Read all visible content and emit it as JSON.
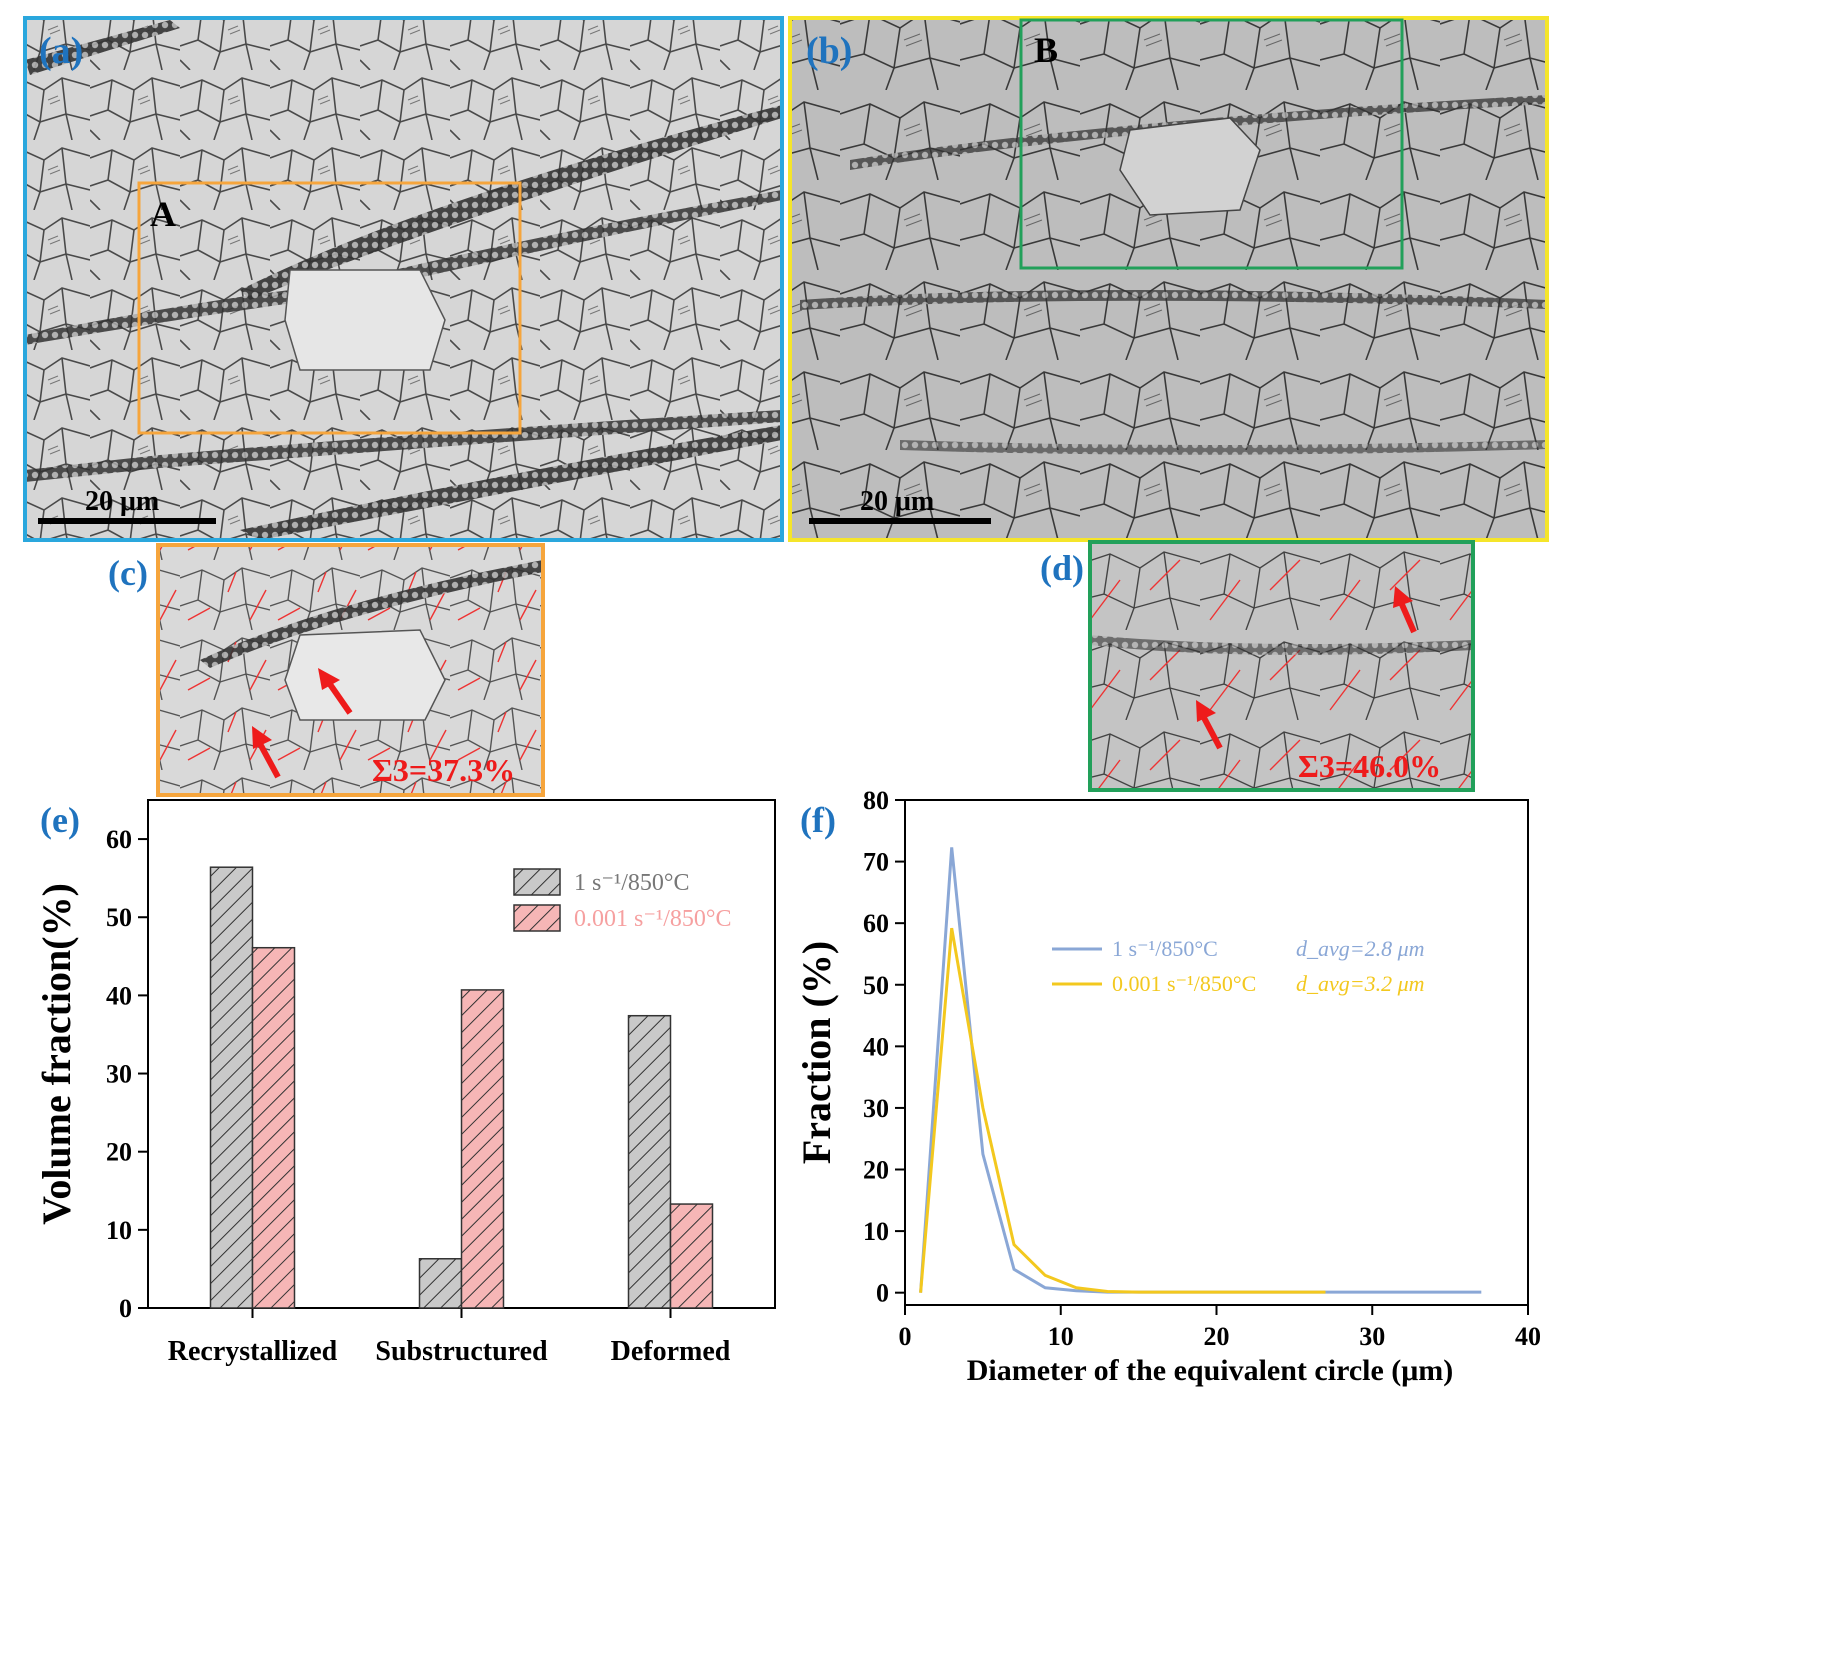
{
  "panels": {
    "a": {
      "label": "(a)",
      "scale_bar": "20 μm",
      "region_label": "A"
    },
    "b": {
      "label": "(b)",
      "scale_bar": "20 μm",
      "region_label": "B"
    },
    "c": {
      "label": "(c)",
      "sigma3": "Σ3=37.3%"
    },
    "d": {
      "label": "(d)",
      "sigma3": "Σ3=46.0%"
    },
    "e": {
      "label": "(e)"
    },
    "f": {
      "label": "(f)"
    }
  },
  "colors": {
    "panel_a_frame": "#2aa7dd",
    "panel_b_frame": "#f5e52a",
    "region_a_frame": "#f6a53c",
    "region_b_frame": "#22a05a",
    "series_fast": "#8aa7d6",
    "series_slow": "#f3c81e",
    "bar_fast_fill": "#c9c9c9",
    "bar_slow_fill": "#f6b6b6",
    "annotation_red": "#ee1b1b",
    "panel_label_blue": "#1f73be"
  },
  "chart_data": [
    {
      "type": "bar",
      "title": "",
      "xlabel": "",
      "ylabel": "Volume fraction(%)",
      "ylim": [
        0,
        65
      ],
      "yticks": [
        0,
        10,
        20,
        30,
        40,
        50,
        60
      ],
      "categories": [
        "Recrystallized",
        "Substructured",
        "Deformed"
      ],
      "series": [
        {
          "name": "1 s⁻¹/850°C",
          "values": [
            56.4,
            6.3,
            37.4
          ]
        },
        {
          "name": "0.001 s⁻¹/850°C",
          "values": [
            46.1,
            40.7,
            13.3
          ]
        }
      ],
      "legend": "top-right"
    },
    {
      "type": "line",
      "title": "",
      "xlabel": "Diameter of the equivalent circle (μm)",
      "ylabel": "Fraction (%)",
      "xlim": [
        0,
        40
      ],
      "ylim": [
        -2,
        80
      ],
      "xticks": [
        0,
        10,
        20,
        30,
        40
      ],
      "yticks": [
        0,
        10,
        20,
        30,
        40,
        50,
        60,
        70,
        80
      ],
      "series": [
        {
          "name": "1 s⁻¹/850°C",
          "annotation": "d_avg=2.8  μm",
          "x": [
            1,
            3,
            5,
            7,
            9,
            11,
            13,
            15,
            17,
            19,
            21,
            23,
            25,
            27,
            29,
            31,
            33,
            35,
            37
          ],
          "y": [
            0,
            72.3,
            22.5,
            3.8,
            0.8,
            0.3,
            0.1,
            0.1,
            0.1,
            0.1,
            0.1,
            0.1,
            0.1,
            0.1,
            0.1,
            0.1,
            0.1,
            0.1,
            0.1
          ]
        },
        {
          "name": "0.001 s⁻¹/850°C",
          "annotation": "d_avg=3.2  μm",
          "x": [
            1,
            3,
            5,
            7,
            9,
            11,
            13,
            15,
            17,
            19,
            21,
            23,
            25,
            27
          ],
          "y": [
            0,
            59.2,
            30.0,
            7.8,
            2.8,
            0.8,
            0.2,
            0.1,
            0.1,
            0.1,
            0.1,
            0.1,
            0.1,
            0.1
          ]
        }
      ],
      "legend": "center-right"
    }
  ]
}
